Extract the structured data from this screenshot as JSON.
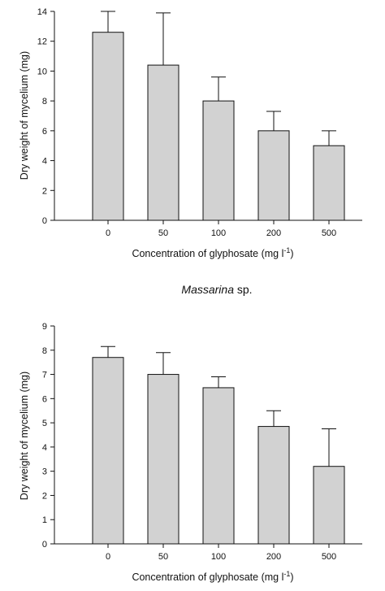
{
  "chart_data": [
    {
      "type": "bar",
      "categories": [
        "0",
        "50",
        "100",
        "200",
        "500"
      ],
      "values": [
        12.6,
        10.4,
        8.0,
        6.0,
        5.0
      ],
      "error_upper": [
        14.0,
        13.9,
        9.6,
        7.3,
        6.0
      ],
      "xlabel_main": "Concentration of glyphosate (mg l",
      "xlabel_sup": "-1",
      "xlabel_end": ")",
      "ylabel": "Dry weight of mycelium (mg)",
      "ylim": [
        0,
        14
      ],
      "yticks": [
        "0",
        "2",
        "4",
        "6",
        "8",
        "10",
        "12",
        "14"
      ],
      "grid": false
    },
    {
      "type": "bar",
      "categories": [
        "0",
        "50",
        "100",
        "200",
        "500"
      ],
      "values": [
        7.7,
        7.0,
        6.45,
        4.85,
        3.2
      ],
      "error_upper": [
        8.15,
        7.9,
        6.9,
        5.5,
        4.75
      ],
      "xlabel_main": "Concentration of glyphosate (mg l",
      "xlabel_sup": "-1",
      "xlabel_end": ")",
      "ylabel": "Dry weight of mycelium (mg)",
      "ylim": [
        0,
        9
      ],
      "yticks": [
        "0",
        "1",
        "2",
        "3",
        "4",
        "5",
        "6",
        "7",
        "8",
        "9"
      ],
      "grid": false
    }
  ],
  "caption": {
    "italic": "Massarina",
    "rest": " sp."
  }
}
